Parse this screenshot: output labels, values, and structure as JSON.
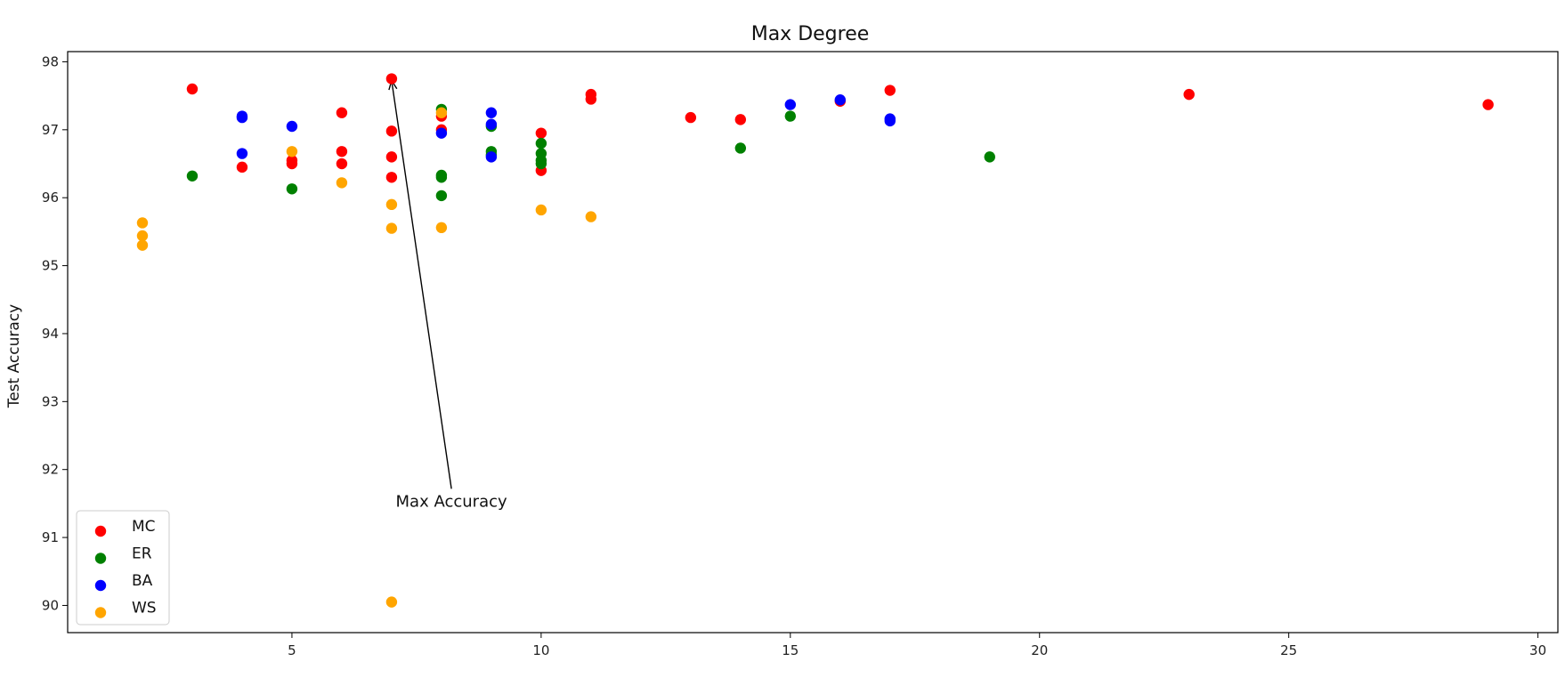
{
  "chart_data": {
    "type": "scatter",
    "title": "Max Degree",
    "xlabel": "",
    "ylabel": "Test Accuracy",
    "xlim": [
      0.5,
      30.4
    ],
    "ylim": [
      89.6,
      98.15
    ],
    "xticks": [
      5,
      10,
      15,
      20,
      25,
      30
    ],
    "yticks": [
      90,
      91,
      92,
      93,
      94,
      95,
      96,
      97,
      98
    ],
    "grid": false,
    "legend_position": "lower-left",
    "annotation": {
      "text": "Max Accuracy",
      "point": [
        7,
        97.75
      ],
      "text_position": [
        8.2,
        91.9
      ]
    },
    "series": [
      {
        "name": "MC",
        "color": "#ff0000",
        "points": [
          [
            3,
            97.6
          ],
          [
            4,
            96.45
          ],
          [
            5,
            96.55
          ],
          [
            5,
            96.5
          ],
          [
            6,
            97.25
          ],
          [
            6,
            96.68
          ],
          [
            6,
            96.5
          ],
          [
            7,
            97.75
          ],
          [
            7,
            96.98
          ],
          [
            7,
            96.6
          ],
          [
            7,
            96.3
          ],
          [
            8,
            97.2
          ],
          [
            8,
            97.0
          ],
          [
            10,
            96.95
          ],
          [
            10,
            96.4
          ],
          [
            11,
            97.52
          ],
          [
            11,
            97.45
          ],
          [
            13,
            97.18
          ],
          [
            14,
            97.15
          ],
          [
            16,
            97.42
          ],
          [
            17,
            97.58
          ],
          [
            23,
            97.52
          ],
          [
            29,
            97.37
          ]
        ]
      },
      {
        "name": "ER",
        "color": "#008000",
        "points": [
          [
            3,
            96.32
          ],
          [
            5,
            96.13
          ],
          [
            8,
            97.3
          ],
          [
            8,
            96.33
          ],
          [
            8,
            96.3
          ],
          [
            8,
            96.03
          ],
          [
            9,
            97.05
          ],
          [
            9,
            96.68
          ],
          [
            9,
            96.63
          ],
          [
            10,
            96.8
          ],
          [
            10,
            96.65
          ],
          [
            10,
            96.55
          ],
          [
            10,
            96.5
          ],
          [
            14,
            96.73
          ],
          [
            15,
            97.2
          ],
          [
            19,
            96.6
          ]
        ]
      },
      {
        "name": "BA",
        "color": "#0000ff",
        "points": [
          [
            4,
            97.2
          ],
          [
            4,
            97.18
          ],
          [
            4,
            96.65
          ],
          [
            5,
            97.05
          ],
          [
            8,
            96.95
          ],
          [
            9,
            97.25
          ],
          [
            9,
            97.08
          ],
          [
            9,
            96.6
          ],
          [
            15,
            97.37
          ],
          [
            16,
            97.44
          ],
          [
            17,
            97.16
          ],
          [
            17,
            97.13
          ]
        ]
      },
      {
        "name": "WS",
        "color": "#ffa500",
        "points": [
          [
            2,
            95.63
          ],
          [
            2,
            95.44
          ],
          [
            2,
            95.3
          ],
          [
            5,
            96.68
          ],
          [
            6,
            96.22
          ],
          [
            7,
            95.9
          ],
          [
            7,
            95.55
          ],
          [
            7,
            90.05
          ],
          [
            8,
            97.25
          ],
          [
            8,
            95.56
          ],
          [
            10,
            95.82
          ],
          [
            11,
            95.72
          ]
        ]
      }
    ]
  }
}
